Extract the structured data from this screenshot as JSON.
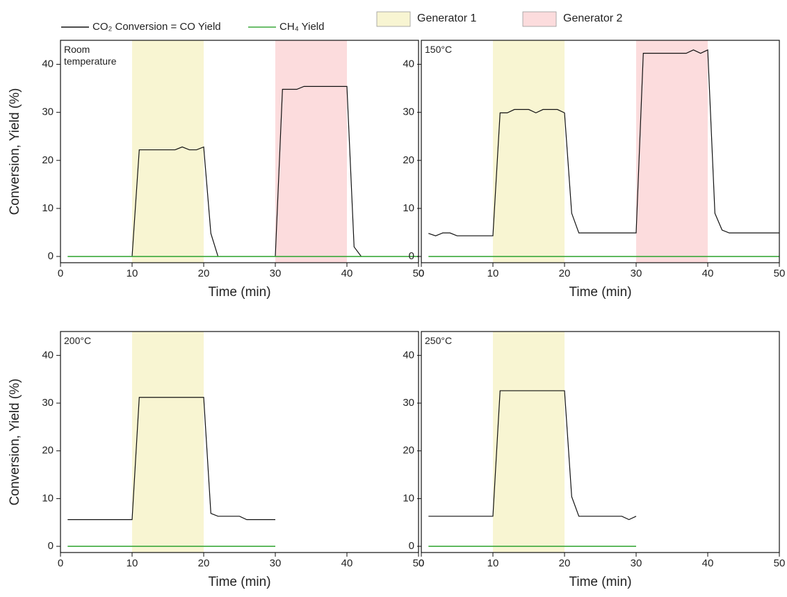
{
  "chart_data": [
    {
      "type": "line",
      "annotation": "Room\ntemperature",
      "x_label": "Time (min)",
      "y_label": "Conversion, Yield (%)",
      "xlim": [
        0,
        50
      ],
      "xticks": [
        0,
        10,
        20,
        30,
        40,
        50
      ],
      "ylim": [
        -1.3,
        45
      ],
      "yticks": [
        0,
        10,
        20,
        30,
        40
      ],
      "regions": [
        {
          "name": "Generator 1",
          "color": "#f8f5d2",
          "x": [
            10,
            20
          ]
        },
        {
          "name": "Generator 2",
          "color": "#fcdcdd",
          "x": [
            30,
            40
          ]
        }
      ],
      "x": [
        1,
        2,
        3,
        4,
        5,
        6,
        7,
        8,
        9,
        10,
        11,
        12,
        13,
        14,
        15,
        16,
        17,
        18,
        19,
        20,
        21,
        22,
        23,
        24,
        25,
        26,
        27,
        28,
        29,
        30,
        31,
        32,
        33,
        34,
        35,
        36,
        37,
        38,
        39,
        40,
        41,
        42,
        43,
        44,
        45,
        46,
        47,
        48,
        49,
        50
      ],
      "series": [
        {
          "name": "CO₂ Conversion = CO Yield",
          "color": "#111111",
          "values": [
            null,
            null,
            null,
            null,
            null,
            null,
            null,
            null,
            null,
            0,
            22.2,
            22.2,
            22.2,
            22.2,
            22.2,
            22.2,
            22.8,
            22.2,
            22.2,
            22.8,
            4.8,
            0,
            null,
            null,
            null,
            null,
            null,
            null,
            null,
            0,
            34.8,
            34.8,
            34.8,
            35.4,
            35.4,
            35.4,
            35.4,
            35.4,
            35.4,
            35.4,
            2,
            0,
            null,
            null,
            null,
            null,
            null,
            null,
            null,
            null
          ]
        },
        {
          "name": "CH₄ Yield",
          "color": "#3aa83a",
          "values": [
            0,
            0,
            0,
            0,
            0,
            0,
            0,
            0,
            0,
            0,
            0,
            0,
            0,
            0,
            0,
            0,
            0,
            0,
            0,
            0,
            0,
            0,
            0,
            0,
            0,
            0,
            0,
            0,
            0,
            0,
            0,
            0,
            0,
            0,
            0,
            0,
            0,
            0,
            0,
            0,
            0,
            0,
            0,
            0,
            0,
            0,
            0,
            0,
            0,
            0
          ]
        }
      ]
    },
    {
      "type": "line",
      "annotation": "150°C",
      "x_label": "Time (min)",
      "xlim": [
        0,
        50
      ],
      "xticks": [
        0,
        10,
        20,
        30,
        40,
        50
      ],
      "ylim": [
        -1.3,
        45
      ],
      "yticks": [
        0,
        10,
        20,
        30,
        40
      ],
      "regions": [
        {
          "color": "#f8f5d2",
          "x": [
            10,
            20
          ]
        },
        {
          "color": "#fcdcdd",
          "x": [
            30,
            40
          ]
        }
      ],
      "x": [
        1,
        2,
        3,
        4,
        5,
        6,
        7,
        8,
        9,
        10,
        11,
        12,
        13,
        14,
        15,
        16,
        17,
        18,
        19,
        20,
        21,
        22,
        23,
        24,
        25,
        26,
        27,
        28,
        29,
        30,
        31,
        32,
        33,
        34,
        35,
        36,
        37,
        38,
        39,
        40,
        41,
        42,
        43,
        44,
        45,
        46,
        47,
        48,
        49,
        50
      ],
      "series": [
        {
          "color": "#111111",
          "values": [
            4.8,
            4.3,
            4.9,
            4.9,
            4.3,
            4.3,
            4.3,
            4.3,
            4.3,
            4.3,
            29.9,
            29.9,
            30.6,
            30.6,
            30.6,
            29.9,
            30.6,
            30.6,
            30.6,
            29.9,
            9,
            4.9,
            4.9,
            4.9,
            4.9,
            4.9,
            4.9,
            4.9,
            4.9,
            4.9,
            42.3,
            42.3,
            42.3,
            42.3,
            42.3,
            42.3,
            42.3,
            43,
            42.3,
            43,
            9,
            5.5,
            4.9,
            4.9,
            4.9,
            4.9,
            4.9,
            4.9,
            4.9,
            4.9
          ]
        },
        {
          "color": "#3aa83a",
          "values": [
            0,
            0,
            0,
            0,
            0,
            0,
            0,
            0,
            0,
            0,
            0,
            0,
            0,
            0,
            0,
            0,
            0,
            0,
            0,
            0,
            0,
            0,
            0,
            0,
            0,
            0,
            0,
            0,
            0,
            0,
            0,
            0,
            0,
            0,
            0,
            0,
            0,
            0,
            0,
            0,
            0,
            0,
            0,
            0,
            0,
            0,
            0,
            0,
            0,
            0
          ]
        }
      ]
    },
    {
      "type": "line",
      "annotation": "200°C",
      "x_label": "Time (min)",
      "y_label": "Conversion, Yield (%)",
      "xlim": [
        0,
        50
      ],
      "xticks": [
        0,
        10,
        20,
        30,
        40,
        50
      ],
      "ylim": [
        -1.3,
        45
      ],
      "yticks": [
        0,
        10,
        20,
        30,
        40
      ],
      "regions": [
        {
          "color": "#f8f5d2",
          "x": [
            10,
            20
          ]
        }
      ],
      "x": [
        1,
        2,
        3,
        4,
        5,
        6,
        7,
        8,
        9,
        10,
        11,
        12,
        13,
        14,
        15,
        16,
        17,
        18,
        19,
        20,
        21,
        22,
        23,
        24,
        25,
        26,
        27,
        28,
        29,
        30
      ],
      "series": [
        {
          "color": "#111111",
          "values": [
            5.6,
            5.6,
            5.6,
            5.6,
            5.6,
            5.6,
            5.6,
            5.6,
            5.6,
            5.6,
            31.2,
            31.2,
            31.2,
            31.2,
            31.2,
            31.2,
            31.2,
            31.2,
            31.2,
            31.2,
            6.9,
            6.3,
            6.3,
            6.3,
            6.3,
            5.6,
            5.6,
            5.6,
            5.6,
            5.6
          ]
        },
        {
          "color": "#3aa83a",
          "values": [
            0,
            0,
            0,
            0,
            0,
            0,
            0,
            0,
            0,
            0,
            0,
            0,
            0,
            0,
            0,
            0,
            0,
            0,
            0,
            0,
            0,
            0,
            0,
            0,
            0,
            0,
            0,
            0,
            0,
            0
          ]
        }
      ]
    },
    {
      "type": "line",
      "annotation": "250°C",
      "x_label": "Time (min)",
      "xlim": [
        0,
        50
      ],
      "xticks": [
        0,
        10,
        20,
        30,
        40,
        50
      ],
      "ylim": [
        -1.3,
        45
      ],
      "yticks": [
        0,
        10,
        20,
        30,
        40
      ],
      "regions": [
        {
          "color": "#f8f5d2",
          "x": [
            10,
            20
          ]
        }
      ],
      "x": [
        1,
        2,
        3,
        4,
        5,
        6,
        7,
        8,
        9,
        10,
        11,
        12,
        13,
        14,
        15,
        16,
        17,
        18,
        19,
        20,
        21,
        22,
        23,
        24,
        25,
        26,
        27,
        28,
        29,
        30
      ],
      "series": [
        {
          "color": "#111111",
          "values": [
            6.3,
            6.3,
            6.3,
            6.3,
            6.3,
            6.3,
            6.3,
            6.3,
            6.3,
            6.3,
            32.6,
            32.6,
            32.6,
            32.6,
            32.6,
            32.6,
            32.6,
            32.6,
            32.6,
            32.6,
            10.4,
            6.3,
            6.3,
            6.3,
            6.3,
            6.3,
            6.3,
            6.3,
            5.6,
            6.3
          ]
        },
        {
          "color": "#3aa83a",
          "values": [
            0,
            0,
            0,
            0,
            0,
            0,
            0,
            0,
            0,
            0,
            0,
            0,
            0,
            0,
            0,
            0,
            0,
            0,
            0,
            0,
            0,
            0,
            0,
            0,
            0,
            0,
            0,
            0,
            0,
            0
          ]
        }
      ]
    }
  ]
}
